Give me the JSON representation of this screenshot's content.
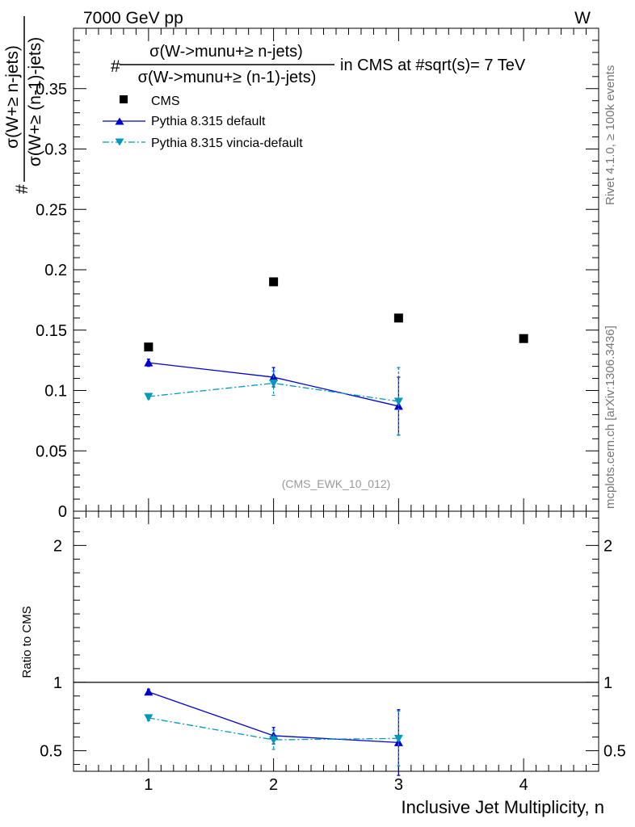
{
  "header": {
    "left_label": "7000 GeV pp",
    "right_label": "W"
  },
  "side_labels": {
    "rivet": "Rivet 4.1.0, ≥ 100k events",
    "mcplots": "mcplots.cern.ch [arXiv:1306.3436]"
  },
  "title": {
    "hash": "#",
    "numerator": "σ(W->munu+≥ n-jets)",
    "denominator": "σ(W->munu+≥ (n-1)-jets)",
    "suffix": "in CMS at #sqrt(s)= 7 TeV"
  },
  "watermark": "(CMS_EWK_10_012)",
  "ylabel": {
    "hash": "#",
    "numerator": "σ(W+≥ n-jets)",
    "denominator": "σ(W+≥ (n-1)-jets)"
  },
  "ratio_ylabel": "Ratio to CMS",
  "xlabel": "Inclusive Jet Multiplicity, n",
  "legend": [
    {
      "key": "cms",
      "label": "CMS"
    },
    {
      "key": "default",
      "label": "Pythia 8.315 default"
    },
    {
      "key": "vincia",
      "label": "Pythia 8.315 vincia-default"
    }
  ],
  "colors": {
    "cms": "#000000",
    "default": "#0000cc",
    "vincia": "#0099bb"
  },
  "chart_data": [
    {
      "type": "scatter",
      "panel": "main",
      "xlim": [
        0.4,
        4.6
      ],
      "ylim": [
        0,
        0.4
      ],
      "yticks": [
        0,
        0.05,
        0.1,
        0.15,
        0.2,
        0.25,
        0.3,
        0.35
      ],
      "ytick_labels": [
        "0",
        "0.05",
        "0.1",
        "0.15",
        "0.2",
        "0.25",
        "0.3",
        "0.35"
      ],
      "xticks": [
        1,
        2,
        3,
        4
      ],
      "series": [
        {
          "name": "CMS",
          "key": "cms",
          "marker": "square",
          "line": "none",
          "x": [
            1,
            2,
            3,
            4
          ],
          "y": [
            0.136,
            0.19,
            0.16,
            0.143
          ]
        },
        {
          "name": "Pythia 8.315 default",
          "key": "default",
          "marker": "triangle-up",
          "line": "solid",
          "x": [
            1,
            2,
            3
          ],
          "y": [
            0.123,
            0.111,
            0.087
          ],
          "yerr": [
            0.003,
            0.008,
            0.024
          ]
        },
        {
          "name": "Pythia 8.315 vincia-default",
          "key": "vincia",
          "marker": "triangle-down",
          "line": "dashdot",
          "x": [
            1,
            2,
            3
          ],
          "y": [
            0.095,
            0.106,
            0.091
          ],
          "yerr": [
            0.002,
            0.01,
            0.028
          ]
        }
      ]
    },
    {
      "type": "scatter",
      "panel": "ratio",
      "ylabel": "Ratio to CMS",
      "xlabel": "Inclusive Jet Multiplicity, n",
      "xlim": [
        0.4,
        4.6
      ],
      "ylim": [
        0.35,
        2.25
      ],
      "yticks": [
        0.5,
        1,
        2
      ],
      "ytick_labels": [
        "0.5",
        "1",
        "2"
      ],
      "xticks": [
        1,
        2,
        3,
        4
      ],
      "xtick_labels": [
        "1",
        "2",
        "3",
        "4"
      ],
      "reference_line": 1,
      "series": [
        {
          "name": "Pythia 8.315 default",
          "key": "default",
          "marker": "triangle-up",
          "line": "solid",
          "x": [
            1,
            2,
            3
          ],
          "y": [
            0.93,
            0.61,
            0.56
          ],
          "yerr": [
            0.02,
            0.06,
            0.24
          ]
        },
        {
          "name": "Pythia 8.315 vincia-default",
          "key": "vincia",
          "marker": "triangle-down",
          "line": "dashdot",
          "x": [
            1,
            2,
            3
          ],
          "y": [
            0.74,
            0.58,
            0.59
          ],
          "yerr": [
            0.02,
            0.07,
            0.2
          ]
        }
      ]
    }
  ]
}
